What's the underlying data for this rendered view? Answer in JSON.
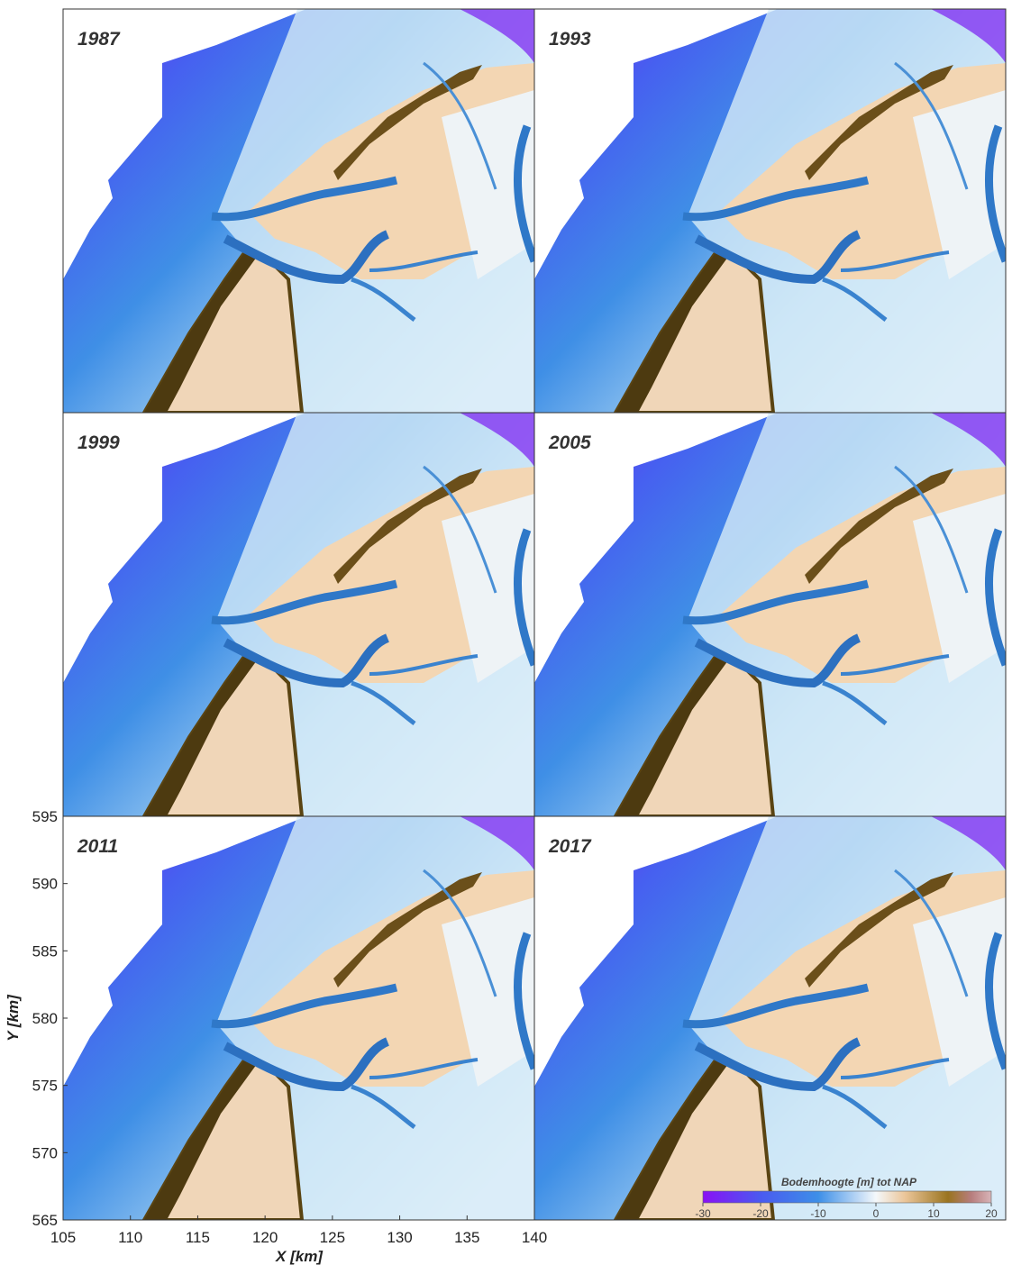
{
  "panels": [
    {
      "label": "1987"
    },
    {
      "label": "1993"
    },
    {
      "label": "1999"
    },
    {
      "label": "2005"
    },
    {
      "label": "2011"
    },
    {
      "label": "2017"
    }
  ],
  "axes": {
    "xlabel": "X [km]",
    "ylabel": "Y [km]",
    "xlim": [
      105,
      140
    ],
    "ylim": [
      565,
      595
    ],
    "xticks": [
      105,
      110,
      115,
      120,
      125,
      130,
      135,
      140
    ],
    "yticks": [
      565,
      570,
      575,
      580,
      585,
      590,
      595
    ]
  },
  "colorbar": {
    "title": "Bodemhoogte  [m] tot NAP",
    "lim": [
      -30,
      20
    ],
    "ticks": [
      -30,
      -20,
      -10,
      0,
      10,
      20
    ]
  }
}
